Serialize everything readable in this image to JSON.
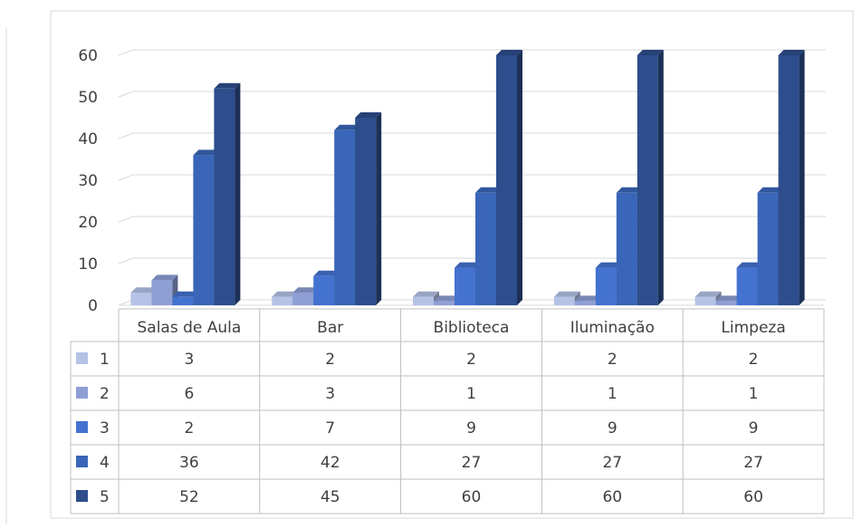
{
  "chart_data": {
    "type": "bar",
    "subtype": "3d-clustered-column-with-data-table",
    "title": "",
    "xlabel": "",
    "ylabel": "",
    "ylim": [
      0,
      60
    ],
    "y_ticks": [
      0,
      10,
      20,
      30,
      40,
      50,
      60
    ],
    "grid": true,
    "legend": "data-table-left",
    "categories": [
      "Salas de Aula",
      "Bar",
      "Biblioteca",
      "Iluminação",
      "Limpeza"
    ],
    "series": [
      {
        "name": "1",
        "color": "#b4c2e6",
        "values": [
          3,
          2,
          2,
          2,
          2
        ]
      },
      {
        "name": "2",
        "color": "#8e9fd6",
        "values": [
          6,
          3,
          1,
          1,
          1
        ]
      },
      {
        "name": "3",
        "color": "#4472d0",
        "values": [
          2,
          7,
          9,
          9,
          9
        ]
      },
      {
        "name": "4",
        "color": "#3966b8",
        "values": [
          36,
          42,
          27,
          27,
          27
        ]
      },
      {
        "name": "5",
        "color": "#2d4d8c",
        "values": [
          52,
          45,
          60,
          60,
          60
        ]
      }
    ]
  }
}
